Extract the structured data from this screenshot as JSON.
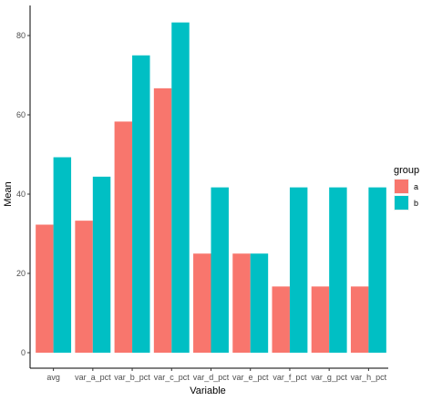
{
  "chart_data": {
    "type": "bar",
    "title": "",
    "xlabel": "Variable",
    "ylabel": "Mean",
    "categories": [
      "avg",
      "var_a_pct",
      "var_b_pct",
      "var_c_pct",
      "var_d_pct",
      "var_e_pct",
      "var_f_pct",
      "var_g_pct",
      "var_h_pct"
    ],
    "series": [
      {
        "name": "a",
        "values": [
          32.3,
          33.3,
          58.3,
          66.7,
          25.0,
          25.0,
          16.7,
          16.7,
          16.7
        ]
      },
      {
        "name": "b",
        "values": [
          49.3,
          44.4,
          75.0,
          83.3,
          41.7,
          25.0,
          41.7,
          41.7,
          41.7
        ]
      }
    ],
    "ylim": [
      0,
      88
    ],
    "yticks": [
      0,
      20,
      40,
      60,
      80
    ],
    "grid": false,
    "legend": {
      "title": "group",
      "position": "right"
    },
    "colors": {
      "a": "#F8766D",
      "b": "#00BFC4"
    }
  }
}
